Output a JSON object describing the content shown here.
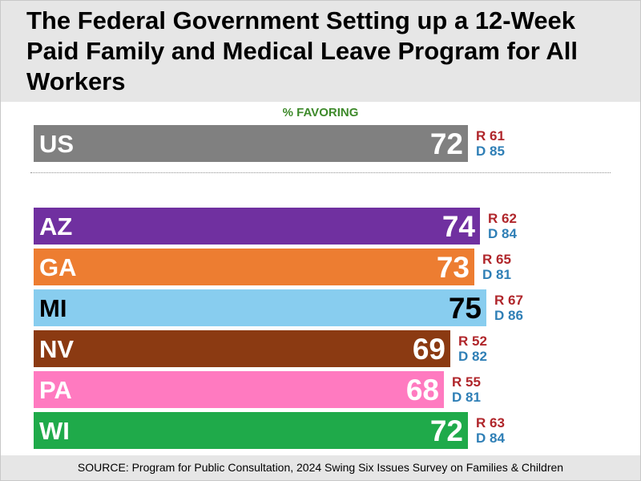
{
  "chart_data": {
    "type": "bar",
    "orientation": "horizontal",
    "title": "The Federal Government Setting up a 12-Week Paid Family and Medical Leave Program for All Workers",
    "subtitle": "% FAVORING",
    "xlim": [
      0,
      100
    ],
    "grid": false,
    "categories": [
      "US",
      "AZ",
      "GA",
      "MI",
      "NV",
      "PA",
      "WI"
    ],
    "series": [
      {
        "values": [
          72,
          74,
          73,
          75,
          69,
          68,
          72
        ]
      }
    ],
    "colors": [
      "#808080",
      "#7030a0",
      "#ed7d31",
      "#88cdef",
      "#8b3a12",
      "#ff7ac0",
      "#1faa4a"
    ],
    "party_breakdown": [
      {
        "r": "R 61",
        "d": "D 85"
      },
      {
        "r": "R 62",
        "d": "D 84"
      },
      {
        "r": "R 65",
        "d": "D 81"
      },
      {
        "r": "R 67",
        "d": "D 86"
      },
      {
        "r": "R 52",
        "d": "D 82"
      },
      {
        "r": "R 55",
        "d": "D 81"
      },
      {
        "r": "R 63",
        "d": "D 84"
      }
    ],
    "source": "SOURCE: Program for Public Consultation, 2024 Swing Six Issues Survey on Families & Children"
  }
}
